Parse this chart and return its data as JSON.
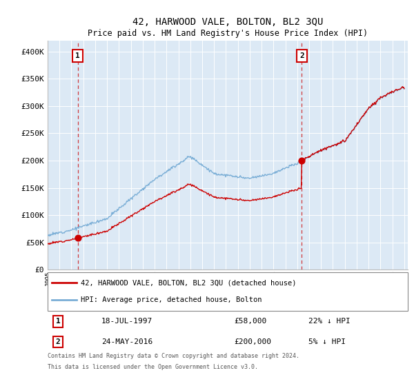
{
  "title": "42, HARWOOD VALE, BOLTON, BL2 3QU",
  "subtitle": "Price paid vs. HM Land Registry's House Price Index (HPI)",
  "bg_color": "#dce9f5",
  "y_ticks": [
    0,
    50000,
    100000,
    150000,
    200000,
    250000,
    300000,
    350000,
    400000
  ],
  "y_tick_labels": [
    "£0",
    "£50K",
    "£100K",
    "£150K",
    "£200K",
    "£250K",
    "£300K",
    "£350K",
    "£400K"
  ],
  "x_start_year": 1995,
  "x_end_year": 2025,
  "hpi_color": "#7aaed6",
  "price_color": "#cc0000",
  "sale1_price": 58000,
  "sale1_x": 1997.54,
  "sale2_price": 200000,
  "sale2_x": 2016.38,
  "legend_line1": "42, HARWOOD VALE, BOLTON, BL2 3QU (detached house)",
  "legend_line2": "HPI: Average price, detached house, Bolton",
  "table_row1_num": "1",
  "table_row1_date": "18-JUL-1997",
  "table_row1_price": "£58,000",
  "table_row1_hpi": "22% ↓ HPI",
  "table_row2_num": "2",
  "table_row2_date": "24-MAY-2016",
  "table_row2_price": "£200,000",
  "table_row2_hpi": "5% ↓ HPI",
  "footnote1": "Contains HM Land Registry data © Crown copyright and database right 2024.",
  "footnote2": "This data is licensed under the Open Government Licence v3.0."
}
